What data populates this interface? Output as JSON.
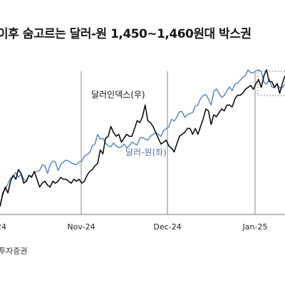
{
  "title": "이후 숨고르는 달러-원 1,450~1,460원대 박스권",
  "y_unit": ")",
  "source": "투자증권",
  "chart_data": {
    "type": "line",
    "x_ticks": [
      "24",
      "Nov-24",
      "Dec-24",
      "Jan-25"
    ],
    "series": [
      {
        "name": "달러인덱스(우)",
        "color": "#111111",
        "values": [
          103.0,
          103.6,
          104.0,
          103.7,
          104.3,
          104.6,
          104.4,
          104.9,
          104.7,
          104.2,
          104.3,
          104.6,
          104.5,
          104.8,
          104.4,
          104.0,
          104.2,
          104.3,
          104.1,
          104.0,
          104.3,
          104.2,
          104.3,
          104.5,
          104.4,
          104.4,
          104.3,
          104.2,
          104.4,
          104.3,
          104.4,
          104.2,
          104.3,
          104.6,
          104.8,
          104.9,
          105.1,
          105.2,
          105.9,
          105.7,
          106.5,
          106.6,
          107.1,
          106.8,
          106.6,
          106.7,
          106.3,
          106.5,
          106.7,
          106.6,
          106.6,
          107.0,
          107.4,
          107.3,
          107.6,
          108.2,
          107.4,
          107.3,
          107.1,
          106.8,
          106.5,
          106.2,
          106.3,
          106.4,
          106.1,
          106.0,
          105.8,
          106.2,
          106.6,
          106.7,
          106.8,
          107.0,
          107.0,
          106.7,
          107.0,
          106.7,
          107.1,
          107.5,
          108.0,
          107.9,
          107.2,
          107.7,
          107.6,
          107.8,
          108.0,
          107.9,
          108.2,
          108.2,
          108.1,
          108.5,
          108.7,
          108.7,
          108.8,
          109.0,
          109.1,
          109.2,
          109.0,
          109.3,
          109.5,
          109.1,
          109.7,
          110.0,
          109.4,
          109.4,
          109.1,
          109.3,
          108.8,
          109.3,
          109.7
        ]
      },
      {
        "name": "달러-원(좌)",
        "color": "#5b8ac2",
        "values": [
          1334,
          1349,
          1352,
          1358,
          1364,
          1366,
          1370,
          1365,
          1368,
          1363,
          1361,
          1367,
          1366,
          1370,
          1371,
          1372,
          1378,
          1377,
          1369,
          1378,
          1382,
          1381,
          1372,
          1378,
          1381,
          1383,
          1382,
          1380,
          1379,
          1378,
          1381,
          1382,
          1387,
          1389,
          1391,
          1398,
          1400,
          1410,
          1405,
          1406,
          1401,
          1398,
          1397,
          1401,
          1398,
          1396,
          1397,
          1400,
          1396,
          1398,
          1402,
          1400,
          1399,
          1406,
          1407,
          1405,
          1404,
          1408,
          1410,
          1412,
          1410,
          1408,
          1414,
          1416,
          1418,
          1426,
          1424,
          1428,
          1434,
          1434,
          1428,
          1431,
          1432,
          1433,
          1440,
          1441,
          1448,
          1451,
          1452,
          1447,
          1441,
          1455,
          1458,
          1453,
          1449,
          1451,
          1456,
          1460,
          1456,
          1463,
          1464,
          1467,
          1470,
          1472,
          1478,
          1475,
          1475,
          1477,
          1478,
          1476,
          1465,
          1463,
          1468,
          1460,
          1459,
          1463,
          1459,
          1459,
          1463
        ]
      }
    ]
  }
}
